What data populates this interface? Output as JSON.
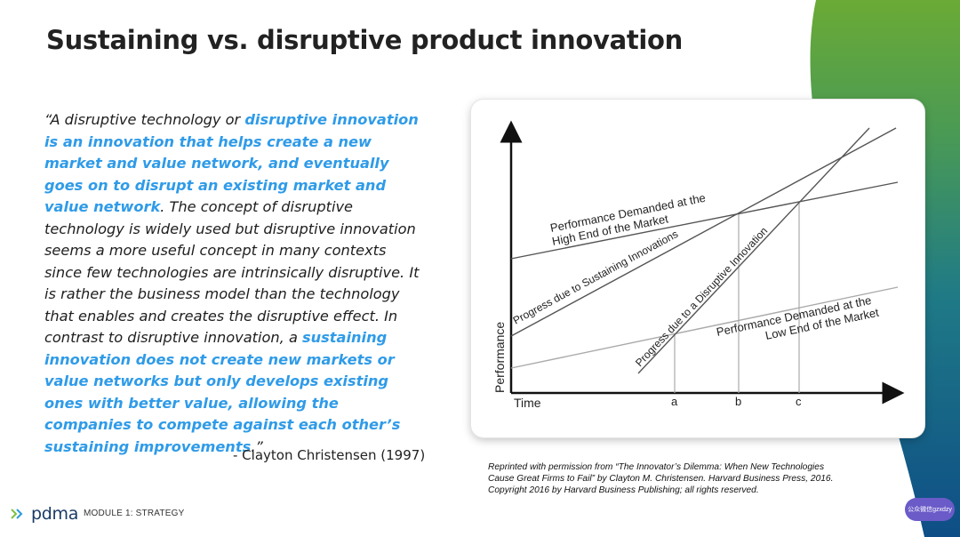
{
  "slide": {
    "title": "Sustaining vs. disruptive product innovation",
    "quote": [
      {
        "text": "“A disruptive technology or ",
        "hl": false
      },
      {
        "text": "disruptive innovation is an innovation that helps create a new market and value network, and eventually goes on to disrupt an existing market and value network",
        "hl": true
      },
      {
        "text": ". The concept of disruptive technology is widely used but disruptive innovation seems a more useful concept in many contexts since few technologies are intrinsically disruptive. It is rather the business model than the technology that enables and creates the disruptive effect. In contrast to disruptive innovation, a ",
        "hl": false
      },
      {
        "text": "sustaining innovation does not create new markets or value networks but only develops existing ones with better value, allowing the companies to compete against each other’s sustaining improvements",
        "hl": true
      },
      {
        "text": ".”",
        "hl": false
      }
    ],
    "attribution": "- Clayton Christensen (1997)",
    "credit": "Reprinted with permission from “The Innovator’s Dilemma: When New Technologies Cause Great Firms to Fail” by Clayton M. Christensen. Harvard Business Press, 2016. Copyright 2016 by Harvard Business Publishing; all rights reserved."
  },
  "diagram": {
    "axis_x_label": "Time",
    "axis_y_label": "Performance",
    "ticks": [
      "a",
      "b",
      "c"
    ],
    "line_labels": {
      "high_end": [
        "Performance Demanded at the",
        "High End of the Market"
      ],
      "sustaining": "Progress due to Sustaining Innovations",
      "disruptive": "Progress due to a Disruptive Innovation",
      "low_end": [
        "Performance Demanded at the",
        "Low End of the Market"
      ]
    }
  },
  "footer": {
    "logo_text": "pdma",
    "module": "MODULE 1:  STRATEGY",
    "watermark": "公众微信gzxdzy"
  },
  "colors": {
    "accent_green": "#5fa03a",
    "accent_blue": "#1a5a8a",
    "highlight": "#2f9be8",
    "line_dark": "#555555",
    "line_light": "#aaaaaa"
  }
}
